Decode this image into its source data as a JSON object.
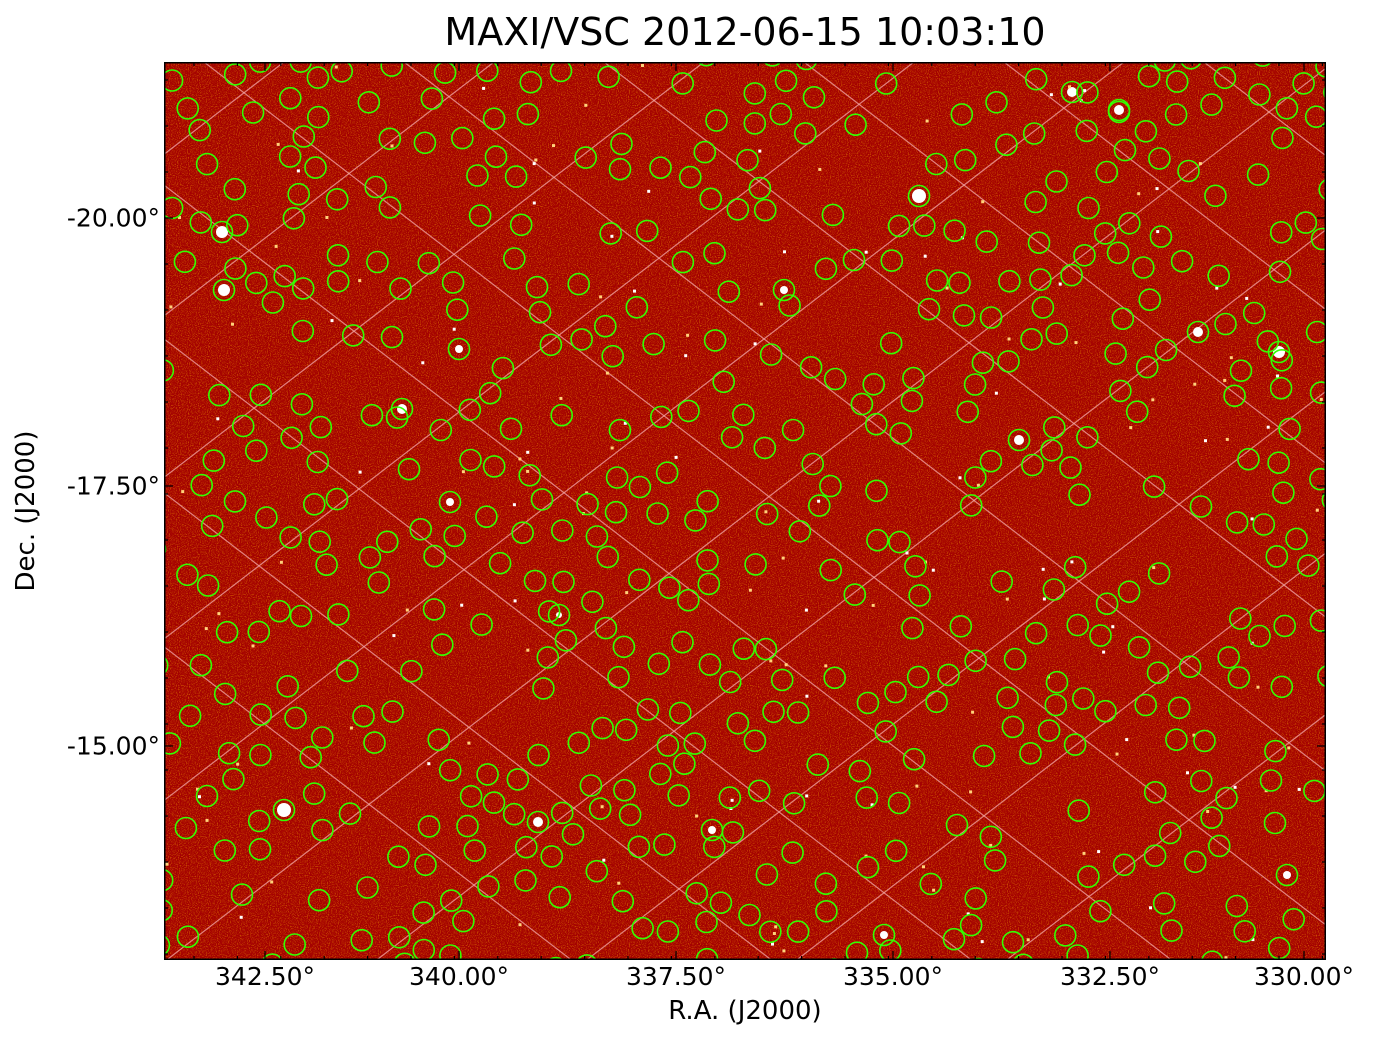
{
  "title": "MAXI/VSC 2012-06-15 10:03:10",
  "x_axis": {
    "label": "R.A. (J2000)",
    "ticks": [
      {
        "value": 342.5,
        "label": "342.50°"
      },
      {
        "value": 340.0,
        "label": "340.00°"
      },
      {
        "value": 337.5,
        "label": "337.50°"
      },
      {
        "value": 335.0,
        "label": "335.00°"
      },
      {
        "value": 332.5,
        "label": "332.50°"
      },
      {
        "value": 330.0,
        "label": "330.00°"
      }
    ]
  },
  "y_axis": {
    "label": "Dec. (J2000)",
    "ticks": [
      {
        "value": -20.0,
        "label": "-20.00°"
      },
      {
        "value": -17.5,
        "label": "-17.50°"
      },
      {
        "value": -15.0,
        "label": "-15.00°"
      }
    ]
  },
  "colors": {
    "background": "#a40000",
    "marker": "#33ff00",
    "grid": "#f0a0a0",
    "frame": "#000000"
  },
  "image": {
    "type": "x-ray sky map with source marker circles",
    "marker_shape": "circle"
  }
}
